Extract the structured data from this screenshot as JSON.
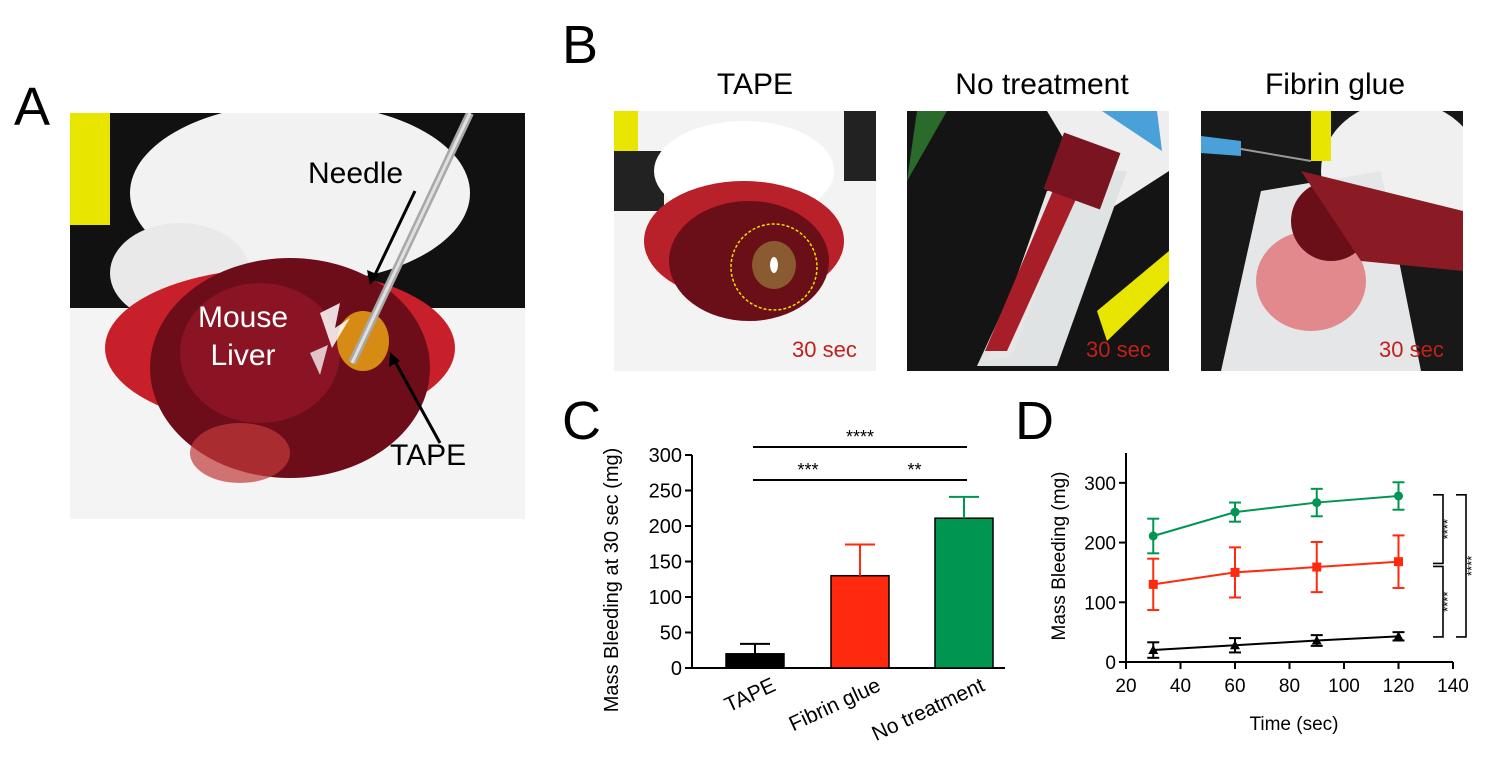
{
  "panels": {
    "a": {
      "letter": "A",
      "labels": {
        "needle": "Needle",
        "mouse": "Mouse",
        "liver": "Liver",
        "tape": "TAPE"
      }
    },
    "b": {
      "letter": "B",
      "photos": [
        {
          "title": "TAPE",
          "timer": "30 sec"
        },
        {
          "title": "No treatment",
          "timer": "30 sec"
        },
        {
          "title": "Fibrin glue",
          "timer": "30 sec"
        }
      ]
    },
    "c": {
      "letter": "C"
    },
    "d": {
      "letter": "D"
    }
  },
  "colors": {
    "tape": "#000000",
    "fibrin_glue": "#ff2a0e",
    "no_treatment": "#009652",
    "timer_text": "#c0201b"
  },
  "chart_data": [
    {
      "id": "C",
      "type": "bar",
      "categories": [
        "TAPE",
        "Fibrin glue",
        "No treatment"
      ],
      "values": [
        20,
        130,
        211
      ],
      "errors": [
        14,
        44,
        30
      ],
      "colors": [
        "#000000",
        "#ff2a0e",
        "#009652"
      ],
      "ylabel": "Mass Bleeding at 30 sec (mg)",
      "ylim": [
        0,
        300
      ],
      "yticks": [
        "0",
        "50",
        "100",
        "150",
        "200",
        "250",
        "300"
      ],
      "grid": false,
      "significance": [
        {
          "from": 0,
          "to": 2,
          "label": "****",
          "level": 0
        },
        {
          "from": 0,
          "to": 1,
          "label": "***",
          "level": 1
        },
        {
          "from": 1,
          "to": 2,
          "label": "**",
          "level": 1
        }
      ]
    },
    {
      "id": "D",
      "type": "line",
      "xlabel": "Time (sec)",
      "ylabel": "Mass Bleeding (mg)",
      "xlim": [
        20,
        140
      ],
      "ylim": [
        0,
        350
      ],
      "xticks": [
        "20",
        "40",
        "60",
        "80",
        "100",
        "120",
        "140"
      ],
      "yticks": [
        "0",
        "100",
        "200",
        "300"
      ],
      "grid": false,
      "x": [
        30,
        60,
        90,
        120
      ],
      "series": [
        {
          "values": [
            211,
            251,
            267,
            278
          ],
          "errors": [
            29,
            16,
            23,
            23
          ],
          "color": "#009652",
          "marker": "circle"
        },
        {
          "values": [
            130,
            150,
            159,
            168
          ],
          "errors": [
            43,
            42,
            42,
            44
          ],
          "color": "#ff2a0e",
          "marker": "square"
        },
        {
          "values": [
            20,
            28,
            36,
            43
          ],
          "errors": [
            13,
            12,
            9,
            7
          ],
          "color": "#000000",
          "marker": "triangle"
        }
      ],
      "significance": [
        {
          "label": "****",
          "between": "green-red"
        },
        {
          "label": "****",
          "between": "red-black"
        },
        {
          "label": "****",
          "between": "green-black"
        }
      ]
    }
  ]
}
